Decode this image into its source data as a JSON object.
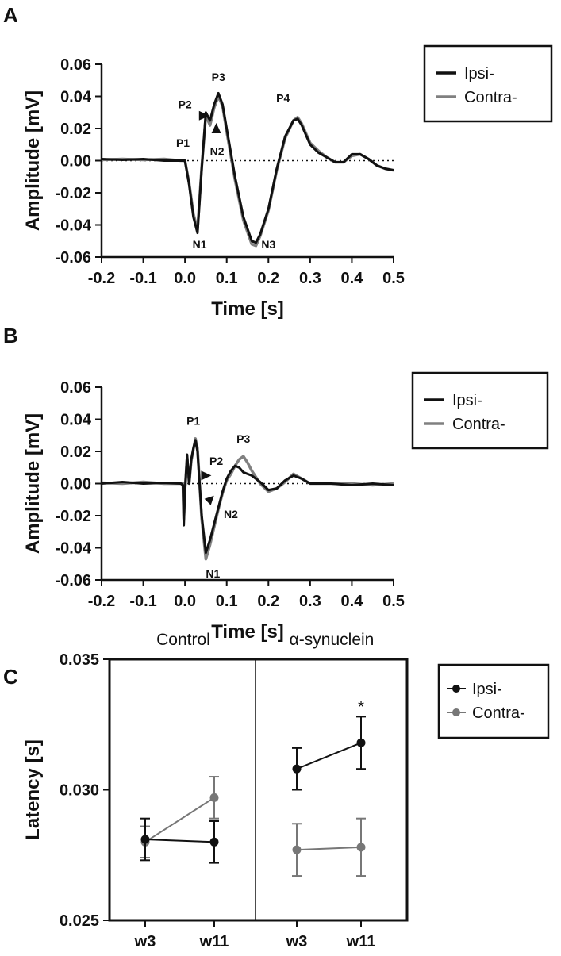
{
  "chart_data": [
    {
      "id": "A",
      "type": "line",
      "panel_label": "A",
      "xlabel": "Time [s]",
      "ylabel": "Amplitude [mV]",
      "xlim": [
        -0.2,
        0.5
      ],
      "ylim": [
        -0.06,
        0.06
      ],
      "xticks": [
        "-0.2",
        "-0.1",
        "0.0",
        "0.1",
        "0.2",
        "0.3",
        "0.4",
        "0.5"
      ],
      "yticks": [
        "0.06",
        "0.04",
        "0.02",
        "0.00",
        "-0.02",
        "-0.04",
        "-0.06"
      ],
      "zero_line": "dotted",
      "legend": [
        "Ipsi-",
        "Contra-"
      ],
      "legend_position": "right",
      "colors": {
        "ipsi": "#111111",
        "contra": "#808080"
      },
      "series": [
        {
          "name": "Ipsi-",
          "x": [
            -0.2,
            -0.15,
            -0.1,
            -0.05,
            -0.01,
            0.0,
            0.01,
            0.02,
            0.03,
            0.04,
            0.05,
            0.06,
            0.07,
            0.08,
            0.09,
            0.1,
            0.12,
            0.14,
            0.16,
            0.17,
            0.18,
            0.2,
            0.22,
            0.24,
            0.26,
            0.27,
            0.28,
            0.3,
            0.32,
            0.34,
            0.36,
            0.38,
            0.4,
            0.42,
            0.44,
            0.46,
            0.48,
            0.5
          ],
          "y": [
            0.001,
            0.0005,
            0.001,
            0.0,
            0.0,
            0.0,
            -0.015,
            -0.035,
            -0.045,
            -0.005,
            0.03,
            0.025,
            0.035,
            0.042,
            0.035,
            0.02,
            -0.01,
            -0.035,
            -0.05,
            -0.051,
            -0.046,
            -0.03,
            -0.005,
            0.015,
            0.025,
            0.026,
            0.022,
            0.01,
            0.005,
            0.002,
            -0.001,
            -0.001,
            0.004,
            0.004,
            0.001,
            -0.003,
            -0.005,
            -0.006
          ]
        },
        {
          "name": "Contra-",
          "x": [
            -0.2,
            -0.15,
            -0.1,
            -0.05,
            -0.01,
            0.0,
            0.01,
            0.02,
            0.03,
            0.04,
            0.05,
            0.06,
            0.07,
            0.08,
            0.09,
            0.1,
            0.12,
            0.14,
            0.16,
            0.17,
            0.18,
            0.2,
            0.22,
            0.24,
            0.26,
            0.27,
            0.28,
            0.3,
            0.32,
            0.34,
            0.36,
            0.38,
            0.4,
            0.42,
            0.44,
            0.46,
            0.48,
            0.5
          ],
          "y": [
            0.0005,
            0.001,
            0.0005,
            0.001,
            0.0,
            0.0,
            -0.014,
            -0.033,
            -0.043,
            -0.004,
            0.028,
            0.022,
            0.033,
            0.04,
            0.034,
            0.018,
            -0.012,
            -0.037,
            -0.052,
            -0.053,
            -0.047,
            -0.031,
            -0.006,
            0.014,
            0.025,
            0.027,
            0.023,
            0.011,
            0.006,
            0.002,
            -0.001,
            -0.001,
            0.003,
            0.004,
            0.001,
            -0.003,
            -0.005,
            -0.006
          ]
        }
      ],
      "annotations": [
        {
          "text": "P3",
          "x": 0.08,
          "y": 0.052,
          "kind": "label"
        },
        {
          "text": "P2",
          "x": 0.0,
          "y": 0.035,
          "kind": "label"
        },
        {
          "text": "P1",
          "x": -0.005,
          "y": 0.011,
          "kind": "label"
        },
        {
          "text": "N2",
          "x": 0.077,
          "y": 0.006,
          "kind": "label"
        },
        {
          "text": "N1",
          "x": 0.035,
          "y": -0.052,
          "kind": "label"
        },
        {
          "text": "N3",
          "x": 0.2,
          "y": -0.052,
          "kind": "label"
        },
        {
          "text": "P4",
          "x": 0.235,
          "y": 0.039,
          "kind": "label"
        },
        {
          "x": 0.045,
          "y": 0.028,
          "kind": "arrow",
          "dir": "right"
        },
        {
          "x": 0.075,
          "y": 0.02,
          "kind": "arrow",
          "dir": "up"
        }
      ]
    },
    {
      "id": "B",
      "type": "line",
      "panel_label": "B",
      "xlabel": "Time [s]",
      "ylabel": "Amplitude [mV]",
      "xlim": [
        -0.2,
        0.5
      ],
      "ylim": [
        -0.06,
        0.06
      ],
      "xticks": [
        "-0.2",
        "-0.1",
        "0.0",
        "0.1",
        "0.2",
        "0.3",
        "0.4",
        "0.5"
      ],
      "yticks": [
        "0.06",
        "0.04",
        "0.02",
        "0.00",
        "-0.02",
        "-0.04",
        "-0.06"
      ],
      "zero_line": "dotted",
      "legend": [
        "Ipsi-",
        "Contra-"
      ],
      "legend_position": "right",
      "colors": {
        "ipsi": "#111111",
        "contra": "#808080"
      },
      "series": [
        {
          "name": "Ipsi-",
          "x": [
            -0.2,
            -0.15,
            -0.1,
            -0.05,
            -0.01,
            -0.005,
            -0.003,
            0.0,
            0.005,
            0.01,
            0.015,
            0.02,
            0.025,
            0.03,
            0.04,
            0.05,
            0.06,
            0.07,
            0.08,
            0.09,
            0.1,
            0.11,
            0.12,
            0.13,
            0.14,
            0.15,
            0.16,
            0.18,
            0.2,
            0.22,
            0.24,
            0.26,
            0.28,
            0.3,
            0.35,
            0.4,
            0.45,
            0.5
          ],
          "y": [
            0.0,
            0.001,
            0.0,
            0.0005,
            0.0,
            -0.001,
            -0.026,
            -0.005,
            0.018,
            0.0,
            0.015,
            0.022,
            0.027,
            0.02,
            -0.02,
            -0.043,
            -0.035,
            -0.025,
            -0.015,
            -0.005,
            0.003,
            0.008,
            0.011,
            0.01,
            0.007,
            0.006,
            0.005,
            0.001,
            -0.004,
            -0.003,
            0.002,
            0.005,
            0.003,
            0.0,
            0.0,
            -0.001,
            0.0,
            -0.001
          ]
        },
        {
          "name": "Contra-",
          "x": [
            -0.2,
            -0.15,
            -0.1,
            -0.05,
            -0.01,
            -0.005,
            -0.003,
            0.0,
            0.005,
            0.01,
            0.015,
            0.02,
            0.025,
            0.03,
            0.04,
            0.05,
            0.06,
            0.07,
            0.08,
            0.09,
            0.1,
            0.11,
            0.12,
            0.13,
            0.14,
            0.15,
            0.16,
            0.18,
            0.2,
            0.22,
            0.24,
            0.26,
            0.28,
            0.3,
            0.35,
            0.4,
            0.45,
            0.5
          ],
          "y": [
            0.0005,
            0.0,
            0.001,
            0.0,
            0.0,
            0.0,
            -0.022,
            -0.004,
            0.016,
            0.0,
            0.014,
            0.021,
            0.028,
            0.022,
            -0.022,
            -0.047,
            -0.038,
            -0.027,
            -0.016,
            -0.006,
            0.002,
            0.006,
            0.011,
            0.015,
            0.017,
            0.013,
            0.008,
            0.0,
            -0.005,
            -0.003,
            0.001,
            0.006,
            0.003,
            0.0,
            0.0,
            0.0,
            -0.001,
            0.0
          ]
        }
      ],
      "annotations": [
        {
          "text": "P1",
          "x": 0.02,
          "y": 0.039,
          "kind": "label"
        },
        {
          "text": "P2",
          "x": 0.075,
          "y": 0.014,
          "kind": "label"
        },
        {
          "text": "P3",
          "x": 0.14,
          "y": 0.028,
          "kind": "label"
        },
        {
          "text": "N2",
          "x": 0.11,
          "y": -0.019,
          "kind": "label"
        },
        {
          "text": "N1",
          "x": 0.067,
          "y": -0.056,
          "kind": "label"
        },
        {
          "x": 0.05,
          "y": 0.005,
          "kind": "arrow",
          "dir": "right"
        },
        {
          "x": 0.06,
          "y": -0.01,
          "kind": "arrow",
          "dir": "upright"
        }
      ]
    },
    {
      "id": "C",
      "type": "line",
      "panel_label": "C",
      "ylabel": "Latency [s]",
      "ylim": [
        0.025,
        0.035
      ],
      "yticks": [
        "0.035",
        "0.030",
        "0.025"
      ],
      "groups": [
        "Control",
        "α-synuclein"
      ],
      "categories": [
        "w3",
        "w11"
      ],
      "legend": [
        "Ipsi-",
        "Contra-"
      ],
      "legend_position": "right",
      "colors": {
        "ipsi": "#111111",
        "contra": "#777777"
      },
      "series": [
        {
          "name": "Ipsi-",
          "group": "Control",
          "values": [
            0.0281,
            0.028
          ],
          "errors": [
            0.0008,
            0.0008
          ]
        },
        {
          "name": "Contra-",
          "group": "Control",
          "values": [
            0.028,
            0.0297
          ],
          "errors": [
            0.0006,
            0.0008
          ]
        },
        {
          "name": "Ipsi-",
          "group": "α-synuclein",
          "values": [
            0.0308,
            0.0318
          ],
          "errors": [
            0.0008,
            0.001
          ]
        },
        {
          "name": "Contra-",
          "group": "α-synuclein",
          "values": [
            0.0277,
            0.0278
          ],
          "errors": [
            0.001,
            0.0011
          ]
        }
      ],
      "annotations": [
        {
          "text": "*",
          "group": "α-synuclein",
          "category": "w11"
        }
      ]
    }
  ]
}
